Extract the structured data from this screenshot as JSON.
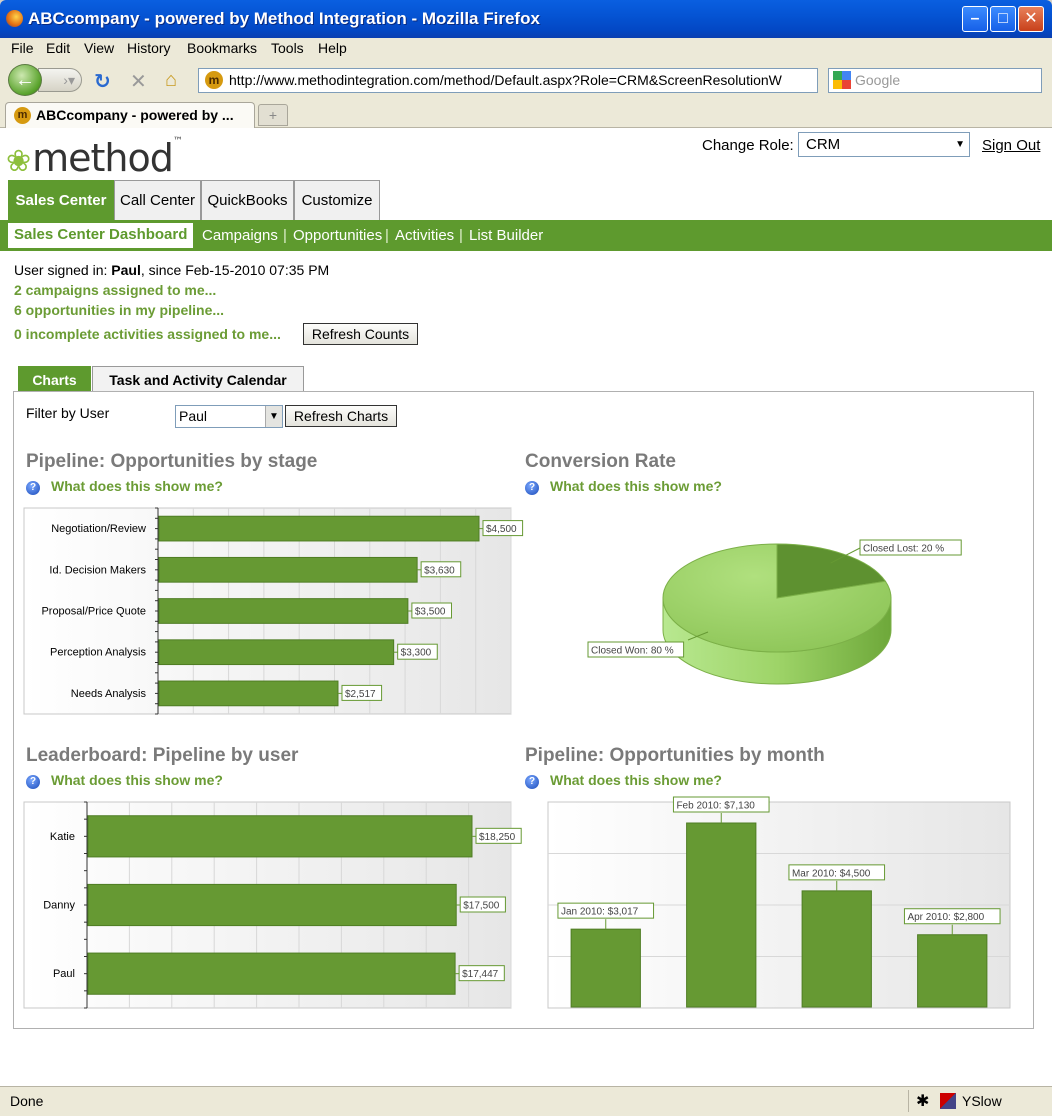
{
  "window": {
    "title": "ABCcompany - powered by Method Integration - Mozilla Firefox"
  },
  "menu": [
    "File",
    "Edit",
    "View",
    "History",
    "Bookmarks",
    "Tools",
    "Help"
  ],
  "nav": {
    "url": "http://www.methodintegration.com/method/Default.aspx?Role=CRM&ScreenResolutionW",
    "search_placeholder": "Google"
  },
  "browser_tab": {
    "label": "ABCcompany - powered by ..."
  },
  "header": {
    "logo_text": "method",
    "logo_tm": "™",
    "change_role_label": "Change Role:",
    "role_value": "CRM",
    "sign_out": "Sign Out"
  },
  "main_tabs": [
    "Sales Center",
    "Call Center",
    "QuickBooks",
    "Customize"
  ],
  "sub_nav": [
    "Sales Center Dashboard",
    "Campaigns",
    "Opportunities",
    "Activities",
    "List Builder"
  ],
  "user_info": {
    "signed_in_prefix": "User signed in: ",
    "user": "Paul",
    "since": ", since Feb-15-2010 07:35 PM",
    "campaigns": "2 campaigns assigned to me...",
    "opportunities": "6 opportunities in my pipeline...",
    "activities": "0 incomplete activities assigned to me...",
    "refresh_counts": "Refresh Counts"
  },
  "content_tabs": [
    "Charts",
    "Task and Activity Calendar"
  ],
  "filter": {
    "label": "Filter by User",
    "value": "Paul",
    "refresh_charts": "Refresh Charts"
  },
  "help_text": "What does this show me?",
  "chart_data": [
    {
      "type": "bar",
      "orientation": "horizontal",
      "title": "Pipeline: Opportunities by stage",
      "categories": [
        "Negotiation/Review",
        "Id. Decision Makers",
        "Proposal/Price Quote",
        "Perception Analysis",
        "Needs Analysis"
      ],
      "values": [
        4500,
        3630,
        3500,
        3300,
        2517
      ],
      "labels": [
        "$4,500",
        "$3,630",
        "$3,500",
        "$3,300",
        "$2,517"
      ],
      "xlim": [
        0,
        4500
      ],
      "color": "#669933"
    },
    {
      "type": "pie",
      "title": "Conversion Rate",
      "categories": [
        "Closed Lost",
        "Closed Won"
      ],
      "values": [
        20,
        80
      ],
      "labels": [
        "Closed Lost: 20 %",
        "Closed Won: 80 %"
      ],
      "colors": [
        "#5e9130",
        "#9ed468"
      ]
    },
    {
      "type": "bar",
      "orientation": "horizontal",
      "title": "Leaderboard: Pipeline by user",
      "categories": [
        "Katie",
        "Danny",
        "Paul"
      ],
      "values": [
        18250,
        17500,
        17447
      ],
      "labels": [
        "$18,250",
        "$17,500",
        "$17,447"
      ],
      "xlim": [
        0,
        18250
      ],
      "color": "#669933"
    },
    {
      "type": "bar",
      "orientation": "vertical",
      "title": "Pipeline: Opportunities by month",
      "categories": [
        "Jan 2010",
        "Feb 2010",
        "Mar 2010",
        "Apr 2010"
      ],
      "values": [
        3017,
        7130,
        4500,
        2800
      ],
      "labels": [
        "Jan 2010: $3,017",
        "Feb 2010: $7,130",
        "Mar 2010: $4,500",
        "Apr 2010: $2,800"
      ],
      "ylim": [
        0,
        7130
      ],
      "color": "#669933"
    }
  ],
  "status": {
    "text": "Done",
    "yslow": "YSlow"
  }
}
